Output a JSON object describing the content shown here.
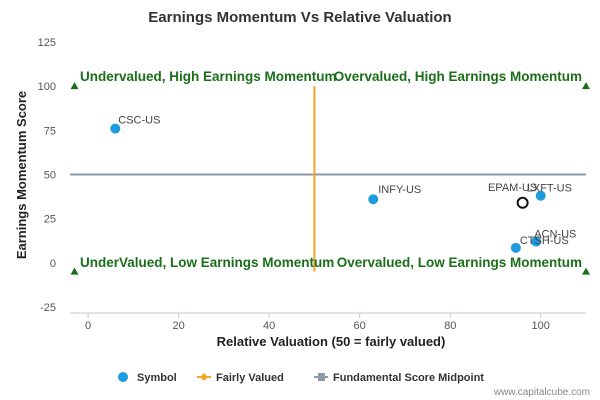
{
  "chart_data": {
    "type": "scatter",
    "title": "Earnings Momentum Vs Relative Valuation",
    "xlabel": "Relative Valuation (50 = fairly valued)",
    "ylabel": "Earnings Momentum Score",
    "xlim": [
      -4,
      110
    ],
    "ylim": [
      -25,
      125
    ],
    "x_ticks": [
      0,
      20,
      40,
      60,
      80,
      100
    ],
    "y_ticks": [
      -25,
      0,
      25,
      50,
      75,
      100,
      125
    ],
    "grid": false,
    "legend_position": "bottom",
    "series": [
      {
        "name": "Symbol",
        "color": "#1f9be0",
        "points": [
          {
            "label": "CSC-US",
            "x": 6,
            "y": 76
          },
          {
            "label": "INFY-US",
            "x": 63,
            "y": 36
          },
          {
            "label": "LXFT-US",
            "x": 100,
            "y": 38
          },
          {
            "label": "ACN-US",
            "x": 99,
            "y": 12
          },
          {
            "label": "CTSH-US",
            "x": 94.5,
            "y": 8.5
          }
        ]
      },
      {
        "name": "Fairly Valued",
        "color": "#f5a623",
        "line": {
          "x": 50,
          "y_from": -5,
          "y_to": 100
        }
      },
      {
        "name": "Fundamental Score Midpoint",
        "color": "#8e9aa8",
        "line": {
          "y": 50,
          "x_from": -4,
          "x_to": 110
        }
      }
    ],
    "highlight": {
      "label": "EPAM-US",
      "x": 96,
      "y": 34
    },
    "quadrants": [
      {
        "text": "Undervalued, High Earnings Momentum",
        "x": -3,
        "y": 100
      },
      {
        "text": "Overvalued, High Earnings Momentum",
        "x": 110,
        "y": 100
      },
      {
        "text": "UnderValued, Low Earnings Momentum",
        "x": -3,
        "y": -5
      },
      {
        "text": "Overvalued, Low Earnings Momentum",
        "x": 110,
        "y": -5
      }
    ]
  },
  "credit": "www.capitalcube.com",
  "colors": {
    "quadrant_text": "#1a6e1a",
    "marker": "#1a6e1a"
  }
}
